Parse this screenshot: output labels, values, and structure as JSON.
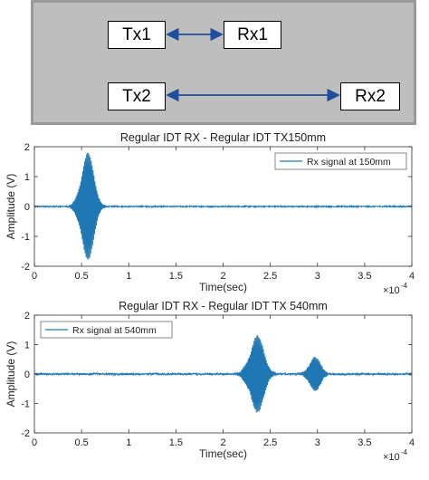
{
  "diagram": {
    "nodes": [
      "Tx1",
      "Rx1",
      "Tx2",
      "Rx2"
    ]
  },
  "charts": [
    {
      "title": "Regular IDT RX - Regular IDT TX150mm",
      "xlabel": "Time(sec)",
      "ylabel": "Amplitude (V)",
      "x_multiplier": "×10",
      "x_exponent": "-4",
      "legend": "Rx signal at 150mm",
      "legend_position": "top-right"
    },
    {
      "title": "Regular IDT RX - Regular IDT TX 540mm",
      "xlabel": "Time(sec)",
      "ylabel": "Amplitude (V)",
      "x_multiplier": "×10",
      "x_exponent": "-4",
      "legend": "Rx signal at 540mm",
      "legend_position": "top-left"
    }
  ],
  "chart_data": [
    {
      "type": "line",
      "title": "Regular IDT RX - Regular IDT TX150mm",
      "xlabel": "Time(sec)",
      "ylabel": "Amplitude (V)",
      "xlim": [
        0,
        0.0004
      ],
      "ylim": [
        -2,
        2
      ],
      "x_ticks": [
        "0",
        "0.5",
        "1",
        "1.5",
        "2",
        "2.5",
        "3",
        "3.5",
        "4"
      ],
      "y_ticks": [
        "-2",
        "-1",
        "0",
        "1",
        "2"
      ],
      "x_scale_label": "×10^-4",
      "grid": false,
      "legend_position": "top-right",
      "color": "#1f77b4",
      "series": [
        {
          "name": "Rx signal at 150mm",
          "noise_amplitude": 0.02,
          "bursts": [
            {
              "center": 5.6e-05,
              "width": 9.5e-06,
              "amplitude": 1.85,
              "frequency": 1000000
            }
          ]
        }
      ]
    },
    {
      "type": "line",
      "title": "Regular IDT RX - Regular IDT TX 540mm",
      "xlabel": "Time(sec)",
      "ylabel": "Amplitude (V)",
      "xlim": [
        0,
        0.0004
      ],
      "ylim": [
        -2,
        2
      ],
      "x_ticks": [
        "0",
        "0.5",
        "1",
        "1.5",
        "2",
        "2.5",
        "3",
        "3.5",
        "4"
      ],
      "y_ticks": [
        "-2",
        "-1",
        "0",
        "1",
        "2"
      ],
      "x_scale_label": "×10^-4",
      "grid": false,
      "legend_position": "top-left",
      "color": "#1f77b4",
      "series": [
        {
          "name": "Rx signal at 540mm",
          "noise_amplitude": 0.03,
          "bursts": [
            {
              "center": 0.0002355,
              "width": 1.05e-05,
              "amplitude": 1.35,
              "frequency": 1000000
            },
            {
              "center": 0.000297,
              "width": 8.5e-06,
              "amplitude": 0.6,
              "frequency": 1000000
            }
          ]
        }
      ]
    }
  ]
}
